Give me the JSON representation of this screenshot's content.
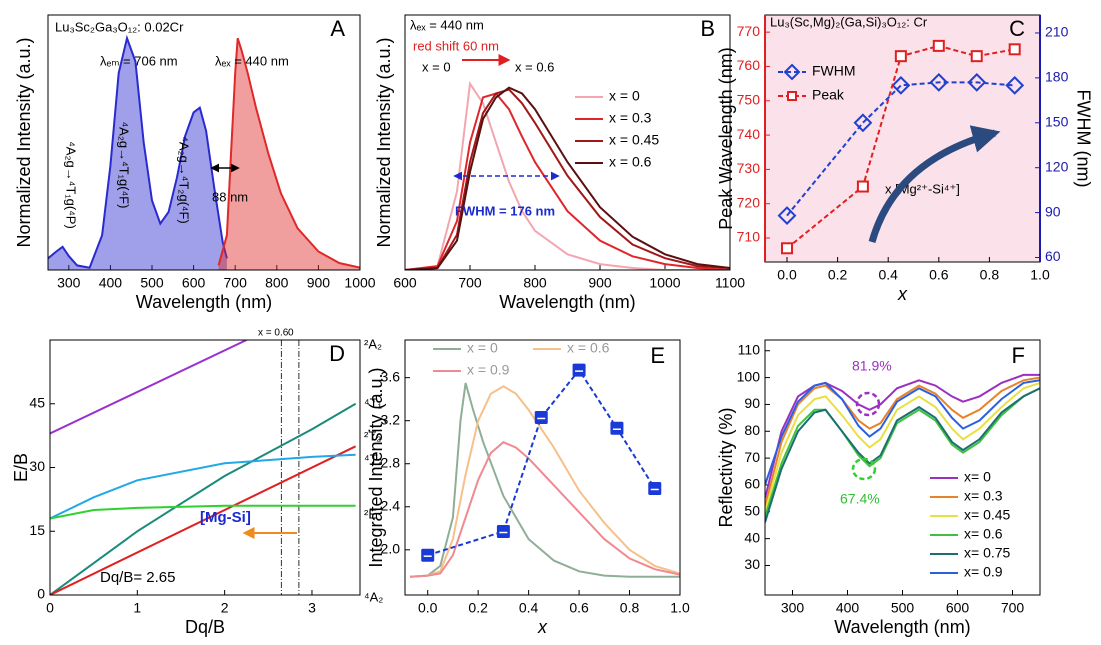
{
  "chart_data": [
    {
      "type": "line",
      "x_label": "Wavelength (nm)",
      "y_label": "Normalized Intensity (a.u.)",
      "annotations": [
        "Lu₃Sc₂Ga₃O₁₂: 0.02Cr",
        "A",
        "λₑₘ = 706 nm",
        "λₑₓ = 440 nm",
        "⁴A₂g→⁴T₁g(⁴P)",
        "⁴A₂g→⁴T₁g(⁴F)",
        "⁴A₂g→⁴T₂g(⁴F)",
        "88 nm"
      ],
      "xlim": [
        250,
        1000
      ],
      "xticks": [
        300,
        400,
        500,
        600,
        700,
        800,
        900,
        1000
      ],
      "ylim": [
        0,
        1.1
      ],
      "series": [
        {
          "color": "#2a2ad0",
          "fill": true,
          "x": [
            250,
            270,
            285,
            300,
            320,
            350,
            380,
            400,
            420,
            440,
            460,
            480,
            500,
            520,
            540,
            560,
            580,
            600,
            615,
            630,
            650,
            670,
            680
          ],
          "values": [
            0.05,
            0.08,
            0.1,
            0.06,
            0.02,
            0.01,
            0.15,
            0.45,
            0.85,
            1.0,
            0.9,
            0.55,
            0.3,
            0.2,
            0.25,
            0.4,
            0.58,
            0.68,
            0.7,
            0.6,
            0.35,
            0.12,
            0.05
          ]
        },
        {
          "color": "#e02828",
          "fill": true,
          "x": [
            660,
            680,
            690,
            700,
            706,
            715,
            730,
            750,
            780,
            810,
            850,
            900,
            950,
            1000
          ],
          "values": [
            0.02,
            0.15,
            0.5,
            0.85,
            1.0,
            0.95,
            0.85,
            0.7,
            0.5,
            0.33,
            0.18,
            0.08,
            0.03,
            0.01
          ]
        }
      ]
    },
    {
      "type": "line",
      "x_label": "Wavelength (nm)",
      "y_label": "Normalized Intensity (a.u.)",
      "annotations": [
        "λₑₓ = 440 nm",
        "red shift 60 nm",
        "x = 0",
        "x = 0.6",
        "FWHM = 176 nm",
        "B"
      ],
      "xlim": [
        600,
        1100
      ],
      "xticks": [
        600,
        700,
        800,
        900,
        1000,
        1100
      ],
      "ylim": [
        0,
        1.3
      ],
      "x": [
        600,
        650,
        680,
        700,
        720,
        740,
        760,
        780,
        800,
        850,
        900,
        950,
        1000,
        1050,
        1100
      ],
      "series": [
        {
          "name": "x = 0",
          "color": "#f4a6b0",
          "values": [
            0,
            0.02,
            0.4,
            0.95,
            0.85,
            0.65,
            0.45,
            0.3,
            0.2,
            0.08,
            0.03,
            0.01,
            0,
            0,
            0
          ]
        },
        {
          "name": "x = 0.3",
          "color": "#e0262a",
          "values": [
            0,
            0.02,
            0.25,
            0.65,
            0.88,
            0.9,
            0.82,
            0.68,
            0.55,
            0.3,
            0.15,
            0.07,
            0.03,
            0.01,
            0
          ]
        },
        {
          "name": "x = 0.45",
          "color": "#a01818",
          "values": [
            0,
            0.01,
            0.18,
            0.55,
            0.8,
            0.9,
            0.92,
            0.85,
            0.75,
            0.48,
            0.27,
            0.13,
            0.06,
            0.02,
            0.01
          ]
        },
        {
          "name": "x = 0.6",
          "color": "#5a1010",
          "values": [
            0,
            0.01,
            0.15,
            0.5,
            0.77,
            0.88,
            0.93,
            0.9,
            0.82,
            0.55,
            0.32,
            0.17,
            0.08,
            0.03,
            0.01
          ]
        }
      ]
    },
    {
      "type": "line",
      "x_label": "x",
      "y_label": "Peak Wavelength (nm)",
      "y2_label": "FWHM (nm)",
      "background": "#fbe1ea",
      "annotations": [
        "Lu₃(Sc,Mg)₂(Ga,Si)₃O₁₂: Cr",
        "x [Mg²⁺-Si⁴⁺]",
        "C"
      ],
      "xlim": [
        -0.087,
        1.0
      ],
      "xticks": [
        {
          "value": 0,
          "label": "0.0"
        },
        0.2,
        0.4,
        0.6,
        0.8,
        {
          "value": 1,
          "label": "1.0"
        }
      ],
      "ylim": [
        703,
        775
      ],
      "yticks": [
        710,
        720,
        730,
        740,
        750,
        760,
        770
      ],
      "y_color": "#e02020",
      "y2lim": [
        57,
        222
      ],
      "y2ticks": [
        60,
        90,
        120,
        150,
        180,
        210
      ],
      "y2_color": "#1a1ab0",
      "series": [
        {
          "name": "FWHM",
          "color": "#2040d0",
          "axis": "y2",
          "dash": true,
          "marker": "diamond",
          "x": [
            0,
            0.3,
            0.45,
            0.6,
            0.75,
            0.9
          ],
          "values": [
            88,
            150,
            175,
            177,
            177,
            175
          ]
        },
        {
          "name": "Peak",
          "color": "#e02020",
          "dash": true,
          "marker": "square",
          "x": [
            0,
            0.3,
            0.45,
            0.6,
            0.75,
            0.9
          ],
          "values": [
            707,
            725,
            763,
            766,
            763,
            765
          ]
        }
      ]
    },
    {
      "type": "line",
      "x_label": "Dq/B",
      "y_label": "E/B",
      "annotations": [
        "x = 0.6",
        "0",
        "[Mg-Si]",
        "Dq/B= 2.65",
        "D",
        "²A₂",
        "⁴T₁",
        "²T₂",
        "⁴T₂",
        "²E",
        "⁴A₂"
      ],
      "xlim": [
        0,
        3.55
      ],
      "xticks": [
        0,
        1,
        2,
        3
      ],
      "ylim": [
        0,
        60
      ],
      "yticks": [
        0,
        15,
        30,
        45
      ],
      "vlines": [
        2.65,
        2.85
      ],
      "series": [
        {
          "color": "#9a30d0",
          "x": [
            0,
            2.25
          ],
          "values": [
            38,
            60
          ]
        },
        {
          "color": "#1a8a7a",
          "x": [
            0,
            1,
            2,
            3,
            3.5
          ],
          "values": [
            0,
            15,
            28,
            39,
            45
          ]
        },
        {
          "color": "#e02020",
          "x": [
            0,
            3.5
          ],
          "values": [
            0,
            35
          ]
        },
        {
          "color": "#20a8e8",
          "x": [
            0,
            0.5,
            1,
            2,
            3,
            3.5
          ],
          "values": [
            18,
            23,
            27,
            31,
            32.5,
            33
          ]
        },
        {
          "color": "#30d030",
          "x": [
            0,
            0.5,
            1,
            2,
            3,
            3.5
          ],
          "values": [
            18,
            20,
            20.5,
            21,
            21,
            21
          ]
        }
      ]
    },
    {
      "type": "line",
      "x_label": "x",
      "y_label": "Integrated Intensity (a.u.)",
      "annotations": [
        "E"
      ],
      "xlim": [
        -0.09,
        1.0
      ],
      "xticks": [
        {
          "value": 0,
          "label": "0.0"
        },
        0.2,
        0.4,
        0.6,
        0.8,
        {
          "value": 1,
          "label": "1.0"
        }
      ],
      "ylim": [
        1.58,
        3.95
      ],
      "yticks": [
        {
          "value": 2,
          "label": "2.0"
        },
        2.4,
        2.8,
        3.2,
        3.6
      ],
      "series": [
        {
          "name": "x = 0",
          "color": "#8fae98",
          "x": [
            -0.07,
            0,
            0.05,
            0.1,
            0.13,
            0.15,
            0.18,
            0.22,
            0.3,
            0.4,
            0.5,
            0.6,
            0.7,
            0.8,
            0.9,
            1.0
          ],
          "values": [
            1.75,
            1.76,
            1.85,
            2.3,
            3.2,
            3.55,
            3.3,
            3.0,
            2.5,
            2.1,
            1.9,
            1.8,
            1.76,
            1.75,
            1.75,
            1.75
          ]
        },
        {
          "name": "x = 0.6",
          "color": "#f6c08a",
          "x": [
            -0.07,
            0,
            0.05,
            0.1,
            0.15,
            0.2,
            0.25,
            0.3,
            0.35,
            0.4,
            0.5,
            0.6,
            0.7,
            0.8,
            0.9,
            1.0
          ],
          "values": [
            1.75,
            1.76,
            1.8,
            2.1,
            2.7,
            3.2,
            3.45,
            3.52,
            3.45,
            3.3,
            2.95,
            2.55,
            2.25,
            2.0,
            1.85,
            1.78
          ]
        },
        {
          "name": "x = 0.9",
          "color": "#ef8a90",
          "x": [
            -0.07,
            0,
            0.05,
            0.1,
            0.15,
            0.2,
            0.25,
            0.3,
            0.35,
            0.4,
            0.5,
            0.6,
            0.7,
            0.8,
            0.9,
            1.0
          ],
          "values": [
            1.75,
            1.76,
            1.78,
            1.95,
            2.3,
            2.65,
            2.9,
            3.0,
            2.95,
            2.85,
            2.6,
            2.35,
            2.1,
            1.92,
            1.82,
            1.77
          ]
        },
        {
          "color": "#1a3ad8",
          "dash": true,
          "marker": "filled-square",
          "x": [
            0,
            0.3,
            0.45,
            0.6,
            0.75,
            0.9
          ],
          "values": [
            1.95,
            2.17,
            3.23,
            3.67,
            3.13,
            2.57
          ]
        }
      ]
    },
    {
      "type": "line",
      "x_label": "Wavelength (nm)",
      "y_label": "Reflectivity (%)",
      "annotations": [
        "81.9%",
        "67.4%",
        "F"
      ],
      "xlim": [
        250,
        750
      ],
      "xticks": [
        300,
        400,
        500,
        600,
        700
      ],
      "ylim": [
        19,
        114
      ],
      "yticks": [
        30,
        40,
        50,
        60,
        70,
        80,
        90,
        100,
        110
      ],
      "x": [
        250,
        280,
        310,
        340,
        360,
        390,
        420,
        440,
        460,
        490,
        530,
        560,
        590,
        610,
        640,
        680,
        720,
        750
      ],
      "series": [
        {
          "name": "x= 0",
          "color": "#9b30c0",
          "values": [
            55,
            80,
            93,
            97,
            98,
            95,
            90,
            88,
            90,
            96,
            99,
            97,
            93,
            91,
            93,
            98,
            101,
            101
          ]
        },
        {
          "name": "x= 0.3",
          "color": "#e8822a",
          "values": [
            52,
            76,
            90,
            96,
            97,
            92,
            84,
            81,
            83,
            92,
            97,
            94,
            88,
            85,
            88,
            95,
            99,
            100
          ]
        },
        {
          "name": "x= 0.45",
          "color": "#e8e040",
          "values": [
            50,
            72,
            86,
            92,
            93,
            86,
            78,
            74,
            77,
            88,
            93,
            89,
            81,
            77,
            81,
            89,
            96,
            98
          ]
        },
        {
          "name": "x= 0.6",
          "color": "#40c040",
          "values": [
            48,
            68,
            82,
            88,
            88,
            80,
            71,
            67,
            70,
            83,
            88,
            84,
            75,
            72,
            76,
            86,
            93,
            96
          ]
        },
        {
          "name": "x= 0.75",
          "color": "#1a7070",
          "values": [
            46,
            66,
            80,
            87,
            88,
            80,
            72,
            68,
            71,
            84,
            89,
            85,
            76,
            73,
            77,
            87,
            93,
            96
          ]
        },
        {
          "name": "x= 0.9",
          "color": "#2a60e0",
          "values": [
            60,
            78,
            91,
            97,
            98,
            92,
            82,
            78,
            81,
            91,
            96,
            93,
            85,
            81,
            84,
            92,
            98,
            99
          ]
        }
      ]
    }
  ]
}
